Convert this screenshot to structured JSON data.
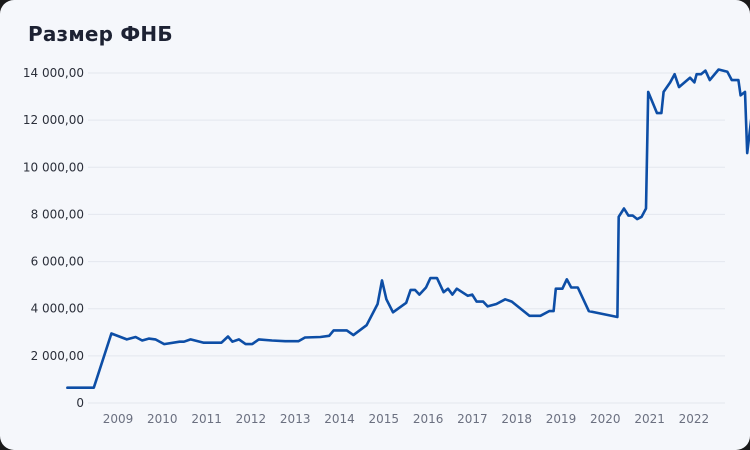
{
  "header": {
    "title": "Размер ФНБ"
  },
  "colors": {
    "line": "#0d4ea6",
    "grid": "#e3e7ee",
    "background": "#f5f7fb"
  },
  "chart_data": {
    "type": "line",
    "title": "Размер ФНБ",
    "xlabel": "",
    "ylabel": "",
    "ylim": [
      0,
      14000
    ],
    "grid": true,
    "legend": null,
    "y_ticks": [
      "0",
      "2 000,00",
      "4 000,00",
      "6 000,00",
      "8 000,00",
      "10 000,00",
      "12 000,00",
      "14 000,00"
    ],
    "y_tick_values": [
      0,
      2000,
      4000,
      6000,
      8000,
      10000,
      12000,
      14000
    ],
    "x_ticks": [
      "2009",
      "2010",
      "2011",
      "2012",
      "2013",
      "2014",
      "2015",
      "2016",
      "2017",
      "2018",
      "2019",
      "2020",
      "2021",
      "2022"
    ],
    "series": [
      {
        "name": "Размер ФНБ",
        "points": [
          [
            2008.35,
            650
          ],
          [
            2008.95,
            650
          ],
          [
            2009.35,
            2950
          ],
          [
            2009.7,
            2700
          ],
          [
            2009.9,
            2800
          ],
          [
            2010.05,
            2650
          ],
          [
            2010.2,
            2730
          ],
          [
            2010.35,
            2700
          ],
          [
            2010.55,
            2500
          ],
          [
            2010.9,
            2600
          ],
          [
            2011.0,
            2600
          ],
          [
            2011.15,
            2700
          ],
          [
            2011.45,
            2560
          ],
          [
            2011.85,
            2560
          ],
          [
            2012.0,
            2820
          ],
          [
            2012.1,
            2600
          ],
          [
            2012.25,
            2700
          ],
          [
            2012.4,
            2500
          ],
          [
            2012.55,
            2500
          ],
          [
            2012.7,
            2700
          ],
          [
            2013.0,
            2650
          ],
          [
            2013.3,
            2620
          ],
          [
            2013.6,
            2620
          ],
          [
            2013.75,
            2780
          ],
          [
            2014.1,
            2800
          ],
          [
            2014.3,
            2850
          ],
          [
            2014.4,
            3080
          ],
          [
            2014.7,
            3080
          ],
          [
            2014.85,
            2880
          ],
          [
            2015.15,
            3300
          ],
          [
            2015.4,
            4200
          ],
          [
            2015.5,
            5200
          ],
          [
            2015.6,
            4400
          ],
          [
            2015.75,
            3850
          ],
          [
            2016.05,
            4250
          ],
          [
            2016.15,
            4800
          ],
          [
            2016.25,
            4800
          ],
          [
            2016.35,
            4600
          ],
          [
            2016.5,
            4900
          ],
          [
            2016.6,
            5300
          ],
          [
            2016.75,
            5300
          ],
          [
            2016.9,
            4700
          ],
          [
            2017.0,
            4850
          ],
          [
            2017.1,
            4600
          ],
          [
            2017.2,
            4850
          ],
          [
            2017.45,
            4550
          ],
          [
            2017.55,
            4600
          ],
          [
            2017.65,
            4300
          ],
          [
            2017.8,
            4300
          ],
          [
            2017.9,
            4100
          ],
          [
            2018.1,
            4200
          ],
          [
            2018.3,
            4400
          ],
          [
            2018.45,
            4300
          ],
          [
            2018.85,
            3700
          ],
          [
            2019.1,
            3700
          ],
          [
            2019.3,
            3900
          ],
          [
            2019.4,
            3900
          ],
          [
            2019.45,
            4850
          ],
          [
            2019.6,
            4850
          ],
          [
            2019.7,
            5250
          ],
          [
            2019.8,
            4900
          ],
          [
            2019.95,
            4900
          ],
          [
            2020.2,
            3900
          ],
          [
            2020.85,
            3650
          ],
          [
            2020.88,
            7900
          ],
          [
            2021.0,
            8250
          ],
          [
            2021.1,
            7950
          ],
          [
            2021.2,
            7950
          ],
          [
            2021.3,
            7800
          ],
          [
            2021.4,
            7900
          ],
          [
            2021.5,
            8250
          ],
          [
            2021.55,
            13200
          ],
          [
            2021.75,
            12300
          ],
          [
            2021.85,
            12300
          ],
          [
            2021.9,
            13200
          ],
          [
            2022.05,
            13600
          ],
          [
            2022.15,
            13950
          ],
          [
            2022.25,
            13400
          ],
          [
            2022.5,
            13800
          ],
          [
            2022.6,
            13600
          ],
          [
            2022.65,
            13950
          ],
          [
            2022.75,
            13950
          ],
          [
            2022.85,
            14100
          ],
          [
            2022.95,
            13700
          ],
          [
            2023.15,
            14150
          ],
          [
            2023.35,
            14050
          ],
          [
            2023.45,
            13700
          ],
          [
            2023.6,
            13700
          ],
          [
            2023.65,
            13050
          ],
          [
            2023.75,
            13200
          ],
          [
            2023.8,
            10600
          ],
          [
            2023.92,
            12500
          ]
        ]
      }
    ]
  }
}
